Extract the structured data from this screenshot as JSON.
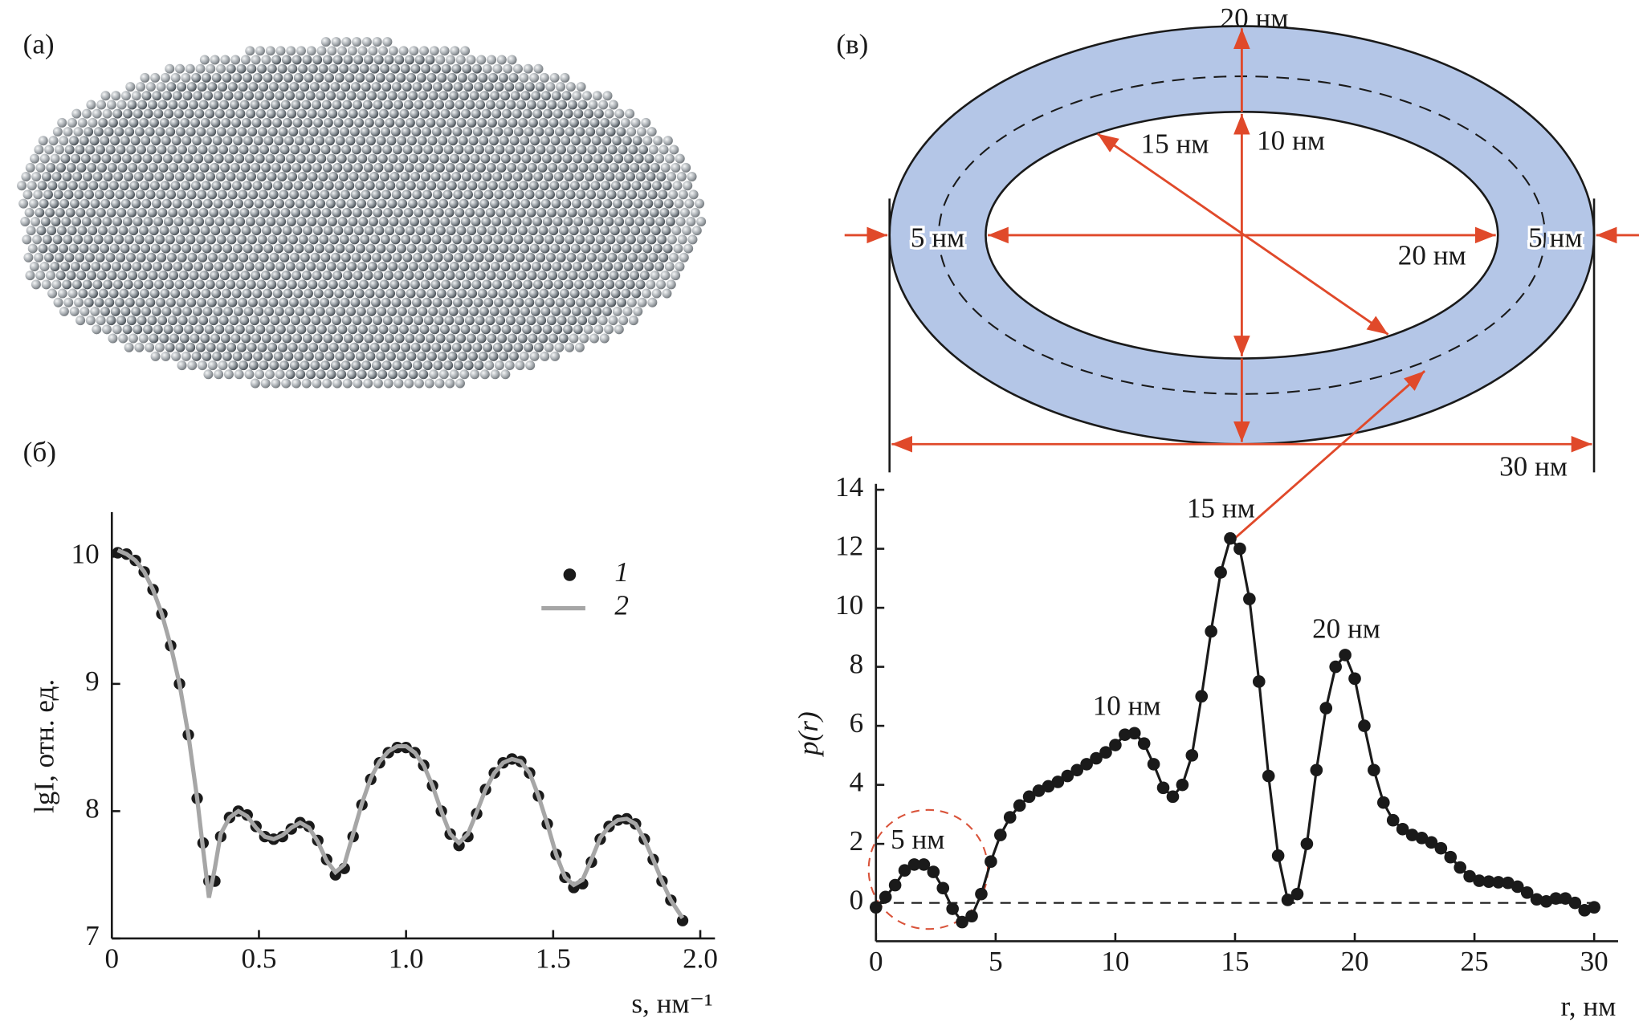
{
  "panel_labels": [
    "(а)",
    "(б)",
    "(в)"
  ],
  "diagram": {
    "labels": [
      "20 нм",
      "10 нм",
      "15 нм",
      "5 нм",
      "5 нм",
      "20 нм",
      "30 нм"
    ]
  },
  "chart_data": [
    {
      "type": "line",
      "y_label": "lgI, отн. ед.",
      "x_label": "s, нм⁻¹",
      "xlim": [
        0,
        2.05
      ],
      "ylim": [
        7,
        10.35
      ],
      "xticks": [
        0,
        0.5,
        {
          "value": 1,
          "label": "1.0"
        },
        1.5,
        {
          "value": 2,
          "label": "2.0"
        }
      ],
      "yticks": [
        7,
        8,
        9,
        10
      ],
      "x": [
        0.02,
        0.05,
        0.08,
        0.11,
        0.14,
        0.17,
        0.2,
        0.23,
        0.26,
        0.29,
        0.31,
        0.33,
        0.35,
        0.37,
        0.4,
        0.43,
        0.46,
        0.49,
        0.52,
        0.55,
        0.58,
        0.61,
        0.64,
        0.67,
        0.7,
        0.73,
        0.76,
        0.79,
        0.82,
        0.85,
        0.88,
        0.91,
        0.94,
        0.97,
        1.0,
        1.03,
        1.06,
        1.09,
        1.12,
        1.15,
        1.18,
        1.21,
        1.24,
        1.27,
        1.3,
        1.33,
        1.36,
        1.39,
        1.42,
        1.45,
        1.48,
        1.51,
        1.54,
        1.57,
        1.6,
        1.63,
        1.66,
        1.69,
        1.72,
        1.75,
        1.78,
        1.81,
        1.84,
        1.87,
        1.9,
        1.94
      ],
      "series": [
        {
          "name": "1",
          "style": "markers",
          "color": "#1a1a1a",
          "values": [
            10.03,
            10.02,
            9.97,
            9.88,
            9.74,
            9.55,
            9.3,
            9.0,
            8.6,
            8.1,
            7.75,
            7.45,
            7.45,
            7.8,
            7.95,
            8.0,
            7.97,
            7.88,
            7.8,
            7.78,
            7.8,
            7.86,
            7.91,
            7.88,
            7.77,
            7.62,
            7.5,
            7.55,
            7.8,
            8.05,
            8.25,
            8.38,
            8.46,
            8.5,
            8.5,
            8.46,
            8.36,
            8.2,
            8.0,
            7.82,
            7.73,
            7.8,
            7.98,
            8.17,
            8.3,
            8.38,
            8.41,
            8.39,
            8.3,
            8.12,
            7.9,
            7.66,
            7.48,
            7.4,
            7.43,
            7.6,
            7.78,
            7.88,
            7.93,
            7.94,
            7.9,
            7.78,
            7.62,
            7.45,
            7.3,
            7.14
          ]
        },
        {
          "name": "2",
          "style": "line",
          "color": "#a6a6a6",
          "values": [
            10.05,
            10.02,
            9.97,
            9.88,
            9.74,
            9.55,
            9.3,
            9.0,
            8.6,
            8.1,
            7.7,
            7.32,
            7.55,
            7.82,
            7.95,
            8.0,
            7.96,
            7.87,
            7.8,
            7.78,
            7.81,
            7.87,
            7.91,
            7.87,
            7.76,
            7.61,
            7.52,
            7.58,
            7.82,
            8.06,
            8.26,
            8.39,
            8.47,
            8.51,
            8.51,
            8.46,
            8.36,
            8.2,
            8.0,
            7.82,
            7.75,
            7.82,
            7.99,
            8.17,
            8.3,
            8.38,
            8.41,
            8.39,
            8.3,
            8.12,
            7.9,
            7.66,
            7.48,
            7.42,
            7.46,
            7.62,
            7.79,
            7.88,
            7.93,
            7.94,
            7.9,
            7.78,
            7.62,
            7.45,
            7.3,
            7.16
          ]
        }
      ]
    },
    {
      "type": "line",
      "y_label": "p(r)",
      "x_label": "r, нм",
      "xlim": [
        0,
        31
      ],
      "ylim": [
        -1.3,
        14.2
      ],
      "xticks": [
        0,
        5,
        10,
        15,
        20,
        25,
        30
      ],
      "yticks": [
        0,
        2,
        4,
        6,
        8,
        10,
        12,
        14
      ],
      "annotations": [
        "5 нм",
        "10 нм",
        "15 нм",
        "20 нм"
      ],
      "x": [
        0,
        0.4,
        0.8,
        1.2,
        1.6,
        2,
        2.4,
        2.8,
        3.2,
        3.6,
        4,
        4.4,
        4.8,
        5.2,
        5.6,
        6,
        6.4,
        6.8,
        7.2,
        7.6,
        8,
        8.4,
        8.8,
        9.2,
        9.6,
        10,
        10.4,
        10.8,
        11.2,
        11.6,
        12,
        12.4,
        12.8,
        13.2,
        13.6,
        14,
        14.4,
        14.8,
        15.2,
        15.6,
        16,
        16.4,
        16.8,
        17.2,
        17.6,
        18,
        18.4,
        18.8,
        19.2,
        19.6,
        20,
        20.4,
        20.8,
        21.2,
        21.6,
        22,
        22.4,
        22.8,
        23.2,
        23.6,
        24,
        24.4,
        24.8,
        25.2,
        25.6,
        26,
        26.4,
        26.8,
        27.2,
        27.6,
        28,
        28.4,
        28.8,
        29.2,
        29.6,
        30
      ],
      "series": [
        {
          "name": "p(r)",
          "style": "line+markers",
          "color": "#1a1a1a",
          "values": [
            -0.15,
            0.2,
            0.6,
            1.1,
            1.3,
            1.3,
            1.05,
            0.5,
            -0.2,
            -0.65,
            -0.45,
            0.3,
            1.4,
            2.3,
            2.9,
            3.3,
            3.6,
            3.8,
            3.95,
            4.1,
            4.3,
            4.5,
            4.7,
            4.9,
            5.1,
            5.35,
            5.7,
            5.75,
            5.4,
            4.7,
            3.9,
            3.6,
            4.0,
            5.0,
            7.0,
            9.2,
            11.2,
            12.35,
            12.0,
            10.3,
            7.5,
            4.3,
            1.6,
            0.1,
            0.3,
            2.0,
            4.5,
            6.6,
            8.0,
            8.4,
            7.6,
            6.0,
            4.5,
            3.4,
            2.8,
            2.5,
            2.3,
            2.2,
            2.05,
            1.85,
            1.55,
            1.2,
            0.9,
            0.75,
            0.72,
            0.7,
            0.68,
            0.55,
            0.35,
            0.12,
            0.05,
            0.15,
            0.15,
            0.0,
            -0.25,
            -0.15
          ]
        }
      ]
    }
  ]
}
